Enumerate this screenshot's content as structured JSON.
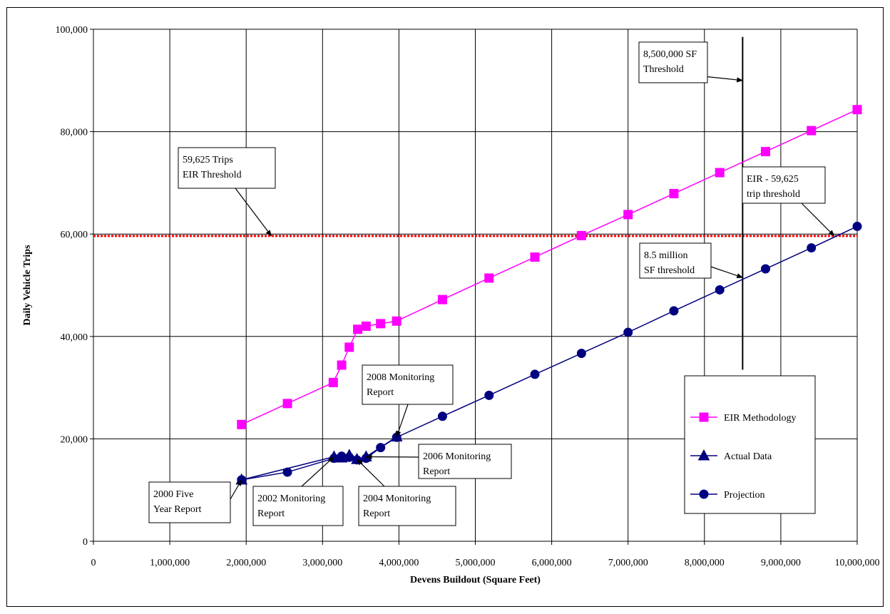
{
  "chart_data": {
    "type": "line",
    "title": "",
    "xlabel": "Devens Buildout (Square Feet)",
    "ylabel": "Daily Vehicle Trips",
    "xlim": [
      0,
      10000000
    ],
    "ylim": [
      0,
      100000
    ],
    "x_ticks": [
      0,
      1000000,
      2000000,
      3000000,
      4000000,
      5000000,
      6000000,
      7000000,
      8000000,
      9000000,
      10000000
    ],
    "x_tick_labels": [
      "0",
      "1,000,000",
      "2,000,000",
      "3,000,000",
      "4,000,000",
      "5,000,000",
      "6,000,000",
      "7,000,000",
      "8,000,000",
      "9,000,000",
      "10,000,000"
    ],
    "y_ticks": [
      0,
      20000,
      40000,
      60000,
      80000,
      100000
    ],
    "y_tick_labels": [
      "0",
      "20,000",
      "40,000",
      "60,000",
      "80,000",
      "100,000"
    ],
    "grid": true,
    "legend_position": "right",
    "series": [
      {
        "name": "EIR Methodology",
        "color": "#ff00ff",
        "marker": "square",
        "points": [
          [
            1940000,
            22800
          ],
          [
            2540000,
            26900
          ],
          [
            3140000,
            31000
          ],
          [
            3250000,
            34400
          ],
          [
            3350000,
            37900
          ],
          [
            3460000,
            41400
          ],
          [
            3570000,
            42000
          ],
          [
            3760000,
            42500
          ],
          [
            3970000,
            43000
          ],
          [
            4570000,
            47200
          ],
          [
            5180000,
            51400
          ],
          [
            5780000,
            55500
          ],
          [
            6390000,
            59700
          ],
          [
            7000000,
            63800
          ],
          [
            7600000,
            67900
          ],
          [
            8200000,
            72000
          ],
          [
            8800000,
            76100
          ],
          [
            9400000,
            80200
          ],
          [
            10000000,
            84300
          ]
        ]
      },
      {
        "name": "Actual Data",
        "color": "#000080",
        "marker": "triangle",
        "points": [
          [
            1940000,
            12000
          ],
          [
            3150000,
            16500
          ],
          [
            3250000,
            16300
          ],
          [
            3350000,
            16800
          ],
          [
            3450000,
            16000
          ],
          [
            3570000,
            16500
          ],
          [
            3970000,
            20400
          ]
        ]
      },
      {
        "name": "Projection",
        "color": "#000080",
        "marker": "circle",
        "points": [
          [
            1940000,
            12000
          ],
          [
            2540000,
            13500
          ],
          [
            3150000,
            16200
          ],
          [
            3250000,
            16600
          ],
          [
            3350000,
            16400
          ],
          [
            3450000,
            15900
          ],
          [
            3570000,
            16200
          ],
          [
            3760000,
            18300
          ],
          [
            3970000,
            20300
          ],
          [
            4570000,
            24400
          ],
          [
            5180000,
            28500
          ],
          [
            5780000,
            32600
          ],
          [
            6390000,
            36700
          ],
          [
            7000000,
            40800
          ],
          [
            7600000,
            45000
          ],
          [
            8200000,
            49100
          ],
          [
            8800000,
            53200
          ],
          [
            9400000,
            57300
          ],
          [
            10000000,
            61500
          ]
        ]
      }
    ],
    "threshold_line": {
      "y": 59625,
      "color": "#ff0000"
    },
    "vertical_line": {
      "x": 8500000,
      "y_range": [
        33500,
        98500
      ],
      "color": "#000000"
    },
    "annotations": [
      {
        "lines": [
          "8,500,000 SF",
          "Threshold"
        ],
        "target": [
          8500000,
          90000
        ]
      },
      {
        "lines": [
          "59,625 Trips",
          "EIR Threshold"
        ],
        "target": [
          2330000,
          59625
        ]
      },
      {
        "lines": [
          "EIR - 59,625",
          "trip threshold"
        ],
        "target": [
          9700000,
          59625
        ]
      },
      {
        "lines": [
          "8.5 million",
          "SF threshold"
        ],
        "target": [
          8500000,
          51500
        ]
      },
      {
        "lines": [
          "2008 Monitoring",
          "Report"
        ],
        "target": [
          3970000,
          20400
        ]
      },
      {
        "lines": [
          "2006 Monitoring",
          "Report"
        ],
        "target": [
          3570000,
          16500
        ]
      },
      {
        "lines": [
          "2000 Five",
          "Year Report"
        ],
        "target": [
          1940000,
          12000
        ]
      },
      {
        "lines": [
          "2002 Monitoring",
          "Report"
        ],
        "target": [
          3150000,
          16500
        ]
      },
      {
        "lines": [
          "2004 Monitoring",
          "Report"
        ],
        "target": [
          3450000,
          16000
        ]
      }
    ]
  }
}
